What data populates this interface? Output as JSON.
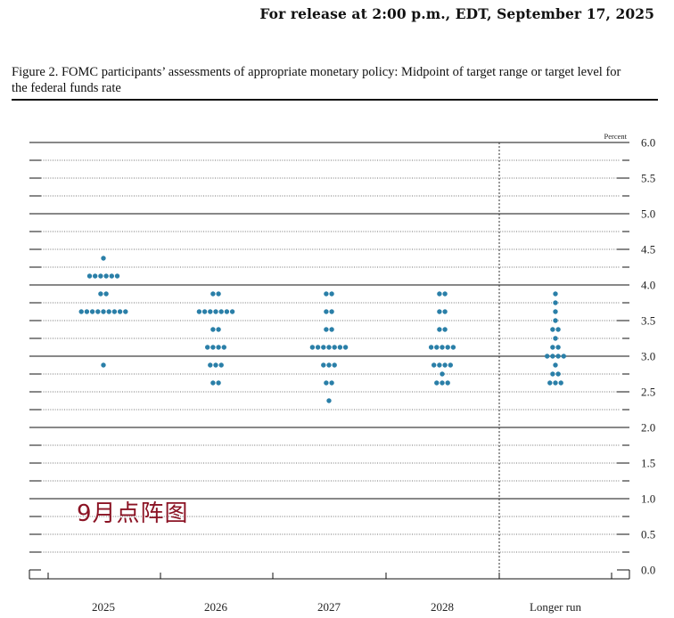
{
  "header": {
    "release": "For release at 2:00 p.m., EDT, September 17, 2025"
  },
  "figure": {
    "title": "Figure 2. FOMC participants’ assessments of appropriate monetary policy: Midpoint of target range or target level for the federal funds rate"
  },
  "overlay_text": "9月点阵图",
  "chart_data": {
    "type": "scatter",
    "unit_label": "Percent",
    "ylim": [
      -0.125,
      6.0
    ],
    "yticks": [
      0.0,
      0.5,
      1.0,
      1.5,
      2.0,
      2.5,
      3.0,
      3.5,
      4.0,
      4.5,
      5.0,
      5.5,
      6.0
    ],
    "ytick_labels": [
      "0.0",
      "0.5",
      "1.0",
      "1.5",
      "2.0",
      "2.5",
      "3.0",
      "3.5",
      "4.0",
      "4.5",
      "5.0",
      "5.5",
      "6.0"
    ],
    "categories": [
      "2025",
      "2026",
      "2027",
      "2028",
      "Longer run"
    ],
    "dot_color": "#2a7fa8",
    "dots": [
      {
        "category": "2025",
        "counts": [
          {
            "rate": 4.375,
            "n": 1
          },
          {
            "rate": 4.125,
            "n": 6
          },
          {
            "rate": 3.875,
            "n": 2
          },
          {
            "rate": 3.625,
            "n": 9
          },
          {
            "rate": 2.875,
            "n": 1
          }
        ]
      },
      {
        "category": "2026",
        "counts": [
          {
            "rate": 3.875,
            "n": 2
          },
          {
            "rate": 3.625,
            "n": 7
          },
          {
            "rate": 3.375,
            "n": 2
          },
          {
            "rate": 3.125,
            "n": 4
          },
          {
            "rate": 2.875,
            "n": 3
          },
          {
            "rate": 2.625,
            "n": 2
          }
        ]
      },
      {
        "category": "2027",
        "counts": [
          {
            "rate": 3.875,
            "n": 2
          },
          {
            "rate": 3.625,
            "n": 2
          },
          {
            "rate": 3.375,
            "n": 2
          },
          {
            "rate": 3.125,
            "n": 7
          },
          {
            "rate": 2.875,
            "n": 3
          },
          {
            "rate": 2.625,
            "n": 2
          },
          {
            "rate": 2.375,
            "n": 1
          }
        ]
      },
      {
        "category": "2028",
        "counts": [
          {
            "rate": 3.875,
            "n": 2
          },
          {
            "rate": 3.625,
            "n": 2
          },
          {
            "rate": 3.375,
            "n": 2
          },
          {
            "rate": 3.125,
            "n": 5
          },
          {
            "rate": 2.875,
            "n": 4
          },
          {
            "rate": 2.75,
            "n": 1
          },
          {
            "rate": 2.625,
            "n": 3
          }
        ]
      },
      {
        "category": "Longer run",
        "counts": [
          {
            "rate": 3.875,
            "n": 1
          },
          {
            "rate": 3.75,
            "n": 1
          },
          {
            "rate": 3.625,
            "n": 1
          },
          {
            "rate": 3.5,
            "n": 1
          },
          {
            "rate": 3.375,
            "n": 2
          },
          {
            "rate": 3.25,
            "n": 1
          },
          {
            "rate": 3.125,
            "n": 2
          },
          {
            "rate": 3.0,
            "n": 4
          },
          {
            "rate": 2.875,
            "n": 1
          },
          {
            "rate": 2.75,
            "n": 2
          },
          {
            "rate": 2.625,
            "n": 3
          }
        ]
      }
    ]
  }
}
